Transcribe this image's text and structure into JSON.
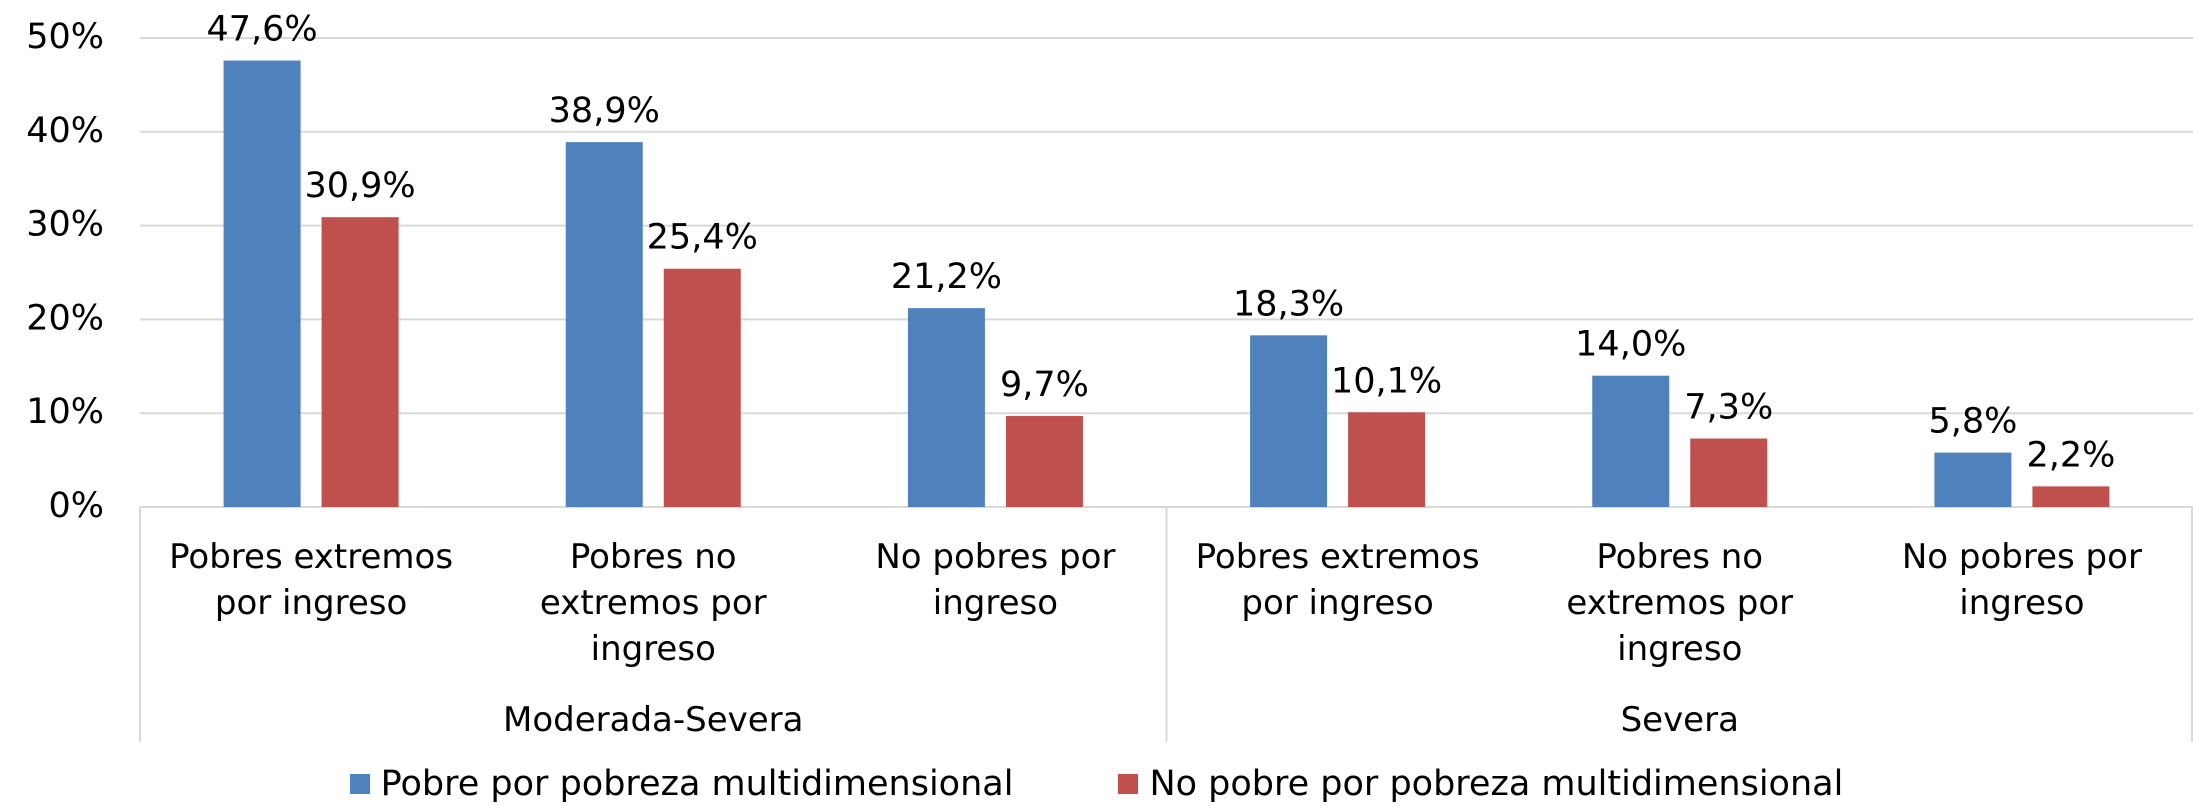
{
  "chart_data": {
    "type": "bar",
    "categories": [
      "Pobres extremos por ingreso",
      "Pobres no extremos por ingreso",
      "No pobres por ingreso",
      "Pobres extremos por ingreso",
      "Pobres no extremos por ingreso",
      "No pobres por ingreso"
    ],
    "groups": [
      {
        "name": "Moderada-Severa",
        "span": 3
      },
      {
        "name": "Severa",
        "span": 3
      }
    ],
    "series": [
      {
        "name": "Pobre por pobreza multidimensional",
        "color": "#4f81bd",
        "values": [
          47.6,
          38.9,
          21.2,
          18.3,
          14.0,
          5.8
        ],
        "value_labels": [
          "47,6%",
          "38,9%",
          "21,2%",
          "18,3%",
          "14,0%",
          "5,8%"
        ]
      },
      {
        "name": "No pobre por pobreza multidimensional",
        "color": "#c0504d",
        "values": [
          30.9,
          25.4,
          9.7,
          10.1,
          7.3,
          2.2
        ],
        "value_labels": [
          "30,9%",
          "25,4%",
          "9,7%",
          "10,1%",
          "7,3%",
          "2,2%"
        ]
      }
    ],
    "ylim": [
      0,
      50
    ],
    "yticks": [
      {
        "value": 0,
        "label": "0%"
      },
      {
        "value": 10,
        "label": "10%"
      },
      {
        "value": 20,
        "label": "20%"
      },
      {
        "value": 30,
        "label": "30%"
      },
      {
        "value": 40,
        "label": "40%"
      },
      {
        "value": 50,
        "label": "50%"
      }
    ],
    "grid": true,
    "legend": "bottom"
  }
}
